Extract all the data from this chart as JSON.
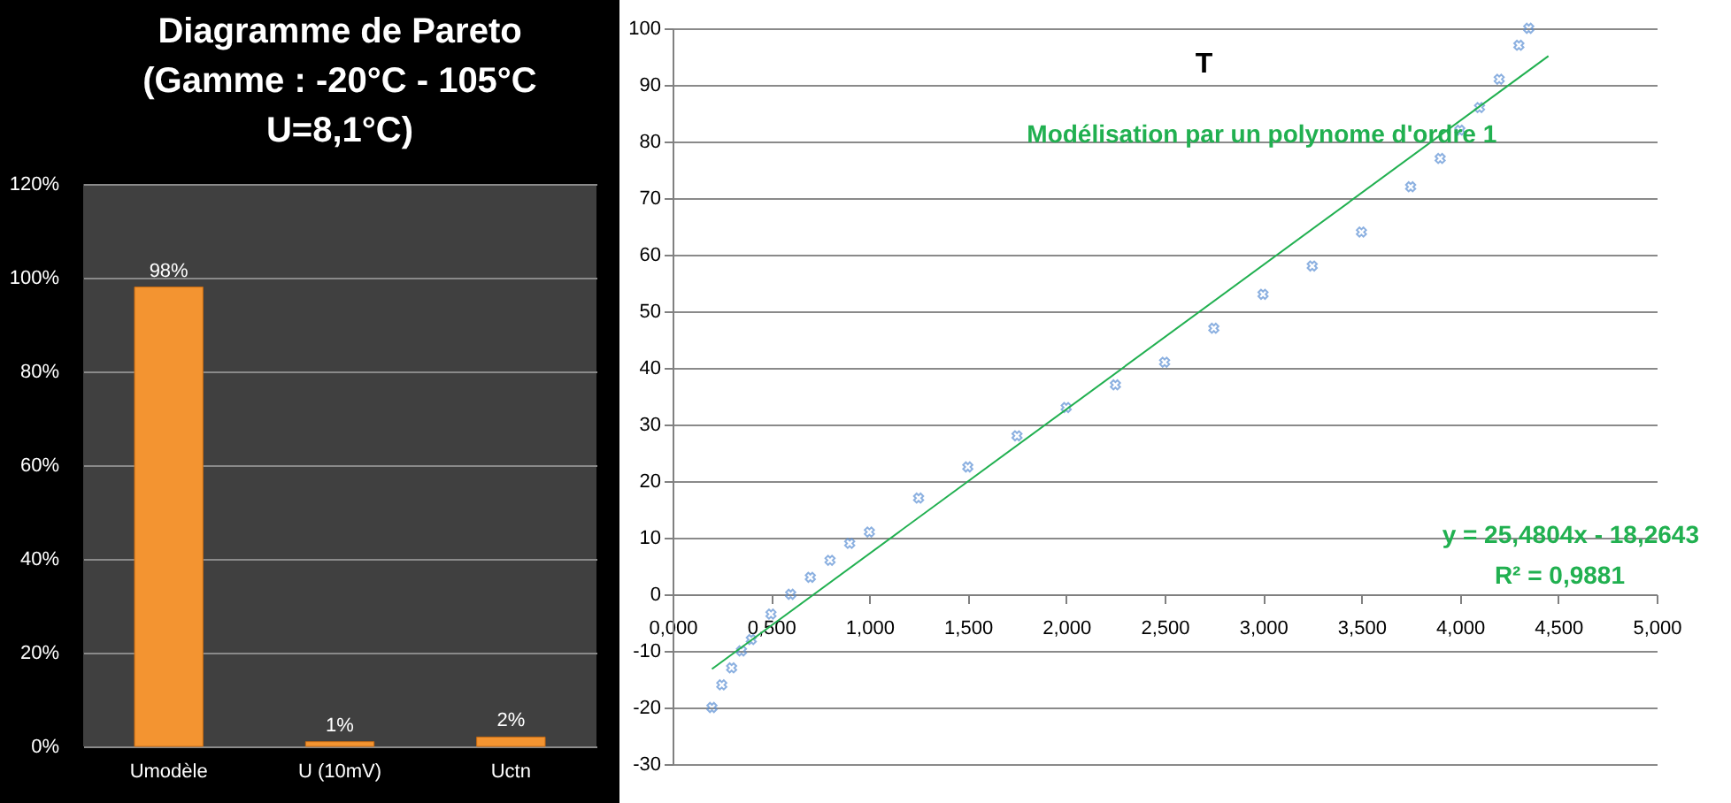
{
  "chart_data": [
    {
      "type": "bar",
      "title": "Diagramme de Pareto\n(Gamme : -20°C - 105°C\nU=8,1°C)",
      "categories": [
        "Umodèle",
        "U (10mV)",
        "Uctn"
      ],
      "values": [
        98,
        1,
        2
      ],
      "value_labels": [
        "98%",
        "1%",
        "2%"
      ],
      "color": "#f39431",
      "ylim": [
        0,
        120
      ],
      "yticks": [
        {
          "value": 0,
          "label": "0%"
        },
        {
          "value": 20,
          "label": "20%"
        },
        {
          "value": 40,
          "label": "40%"
        },
        {
          "value": 60,
          "label": "60%"
        },
        {
          "value": 80,
          "label": "80%"
        },
        {
          "value": 100,
          "label": "100%"
        },
        {
          "value": 120,
          "label": "120%"
        }
      ],
      "grid": true
    },
    {
      "type": "scatter",
      "title": "T",
      "grid": "y",
      "xlim": [
        0,
        5
      ],
      "ylim": [
        -30,
        100
      ],
      "xticks": [
        {
          "value": 0,
          "label": "0,000"
        },
        {
          "value": 0.5,
          "label": "0,500"
        },
        {
          "value": 1,
          "label": "1,000"
        },
        {
          "value": 1.5,
          "label": "1,500"
        },
        {
          "value": 2,
          "label": "2,000"
        },
        {
          "value": 2.5,
          "label": "2,500"
        },
        {
          "value": 3,
          "label": "3,000"
        },
        {
          "value": 3.5,
          "label": "3,500"
        },
        {
          "value": 4,
          "label": "4,000"
        },
        {
          "value": 4.5,
          "label": "4,500"
        },
        {
          "value": 5,
          "label": "5,000"
        }
      ],
      "yticks": [
        -30,
        -20,
        -10,
        0,
        10,
        20,
        30,
        40,
        50,
        60,
        70,
        80,
        90,
        100
      ],
      "annotations": [
        "Modélisation par un polynome d'ordre 1",
        "y = 25,4804x - 18,2643",
        "R² = 0,9881"
      ],
      "series": [
        {
          "type": "scatter",
          "marker": "cross",
          "color": "#5b8fd4",
          "x": [
            0.2,
            0.25,
            0.3,
            0.35,
            0.4,
            0.5,
            0.6,
            0.7,
            0.8,
            0.9,
            1.0,
            1.25,
            1.5,
            1.75,
            2.0,
            2.25,
            2.5,
            2.75,
            3.0,
            3.25,
            3.5,
            3.75,
            3.9,
            4.0,
            4.1,
            4.2,
            4.3,
            4.35
          ],
          "values": [
            -20,
            -16,
            -13,
            -10,
            -8,
            -3.5,
            0,
            3,
            6,
            9,
            11,
            17,
            22.5,
            28,
            33,
            37,
            41,
            47,
            53,
            58,
            64,
            72,
            77,
            82,
            86,
            91,
            97,
            100
          ]
        },
        {
          "type": "line",
          "color": "#21b050",
          "x": [
            0.2,
            4.45
          ],
          "values": [
            -13.2,
            95.1
          ]
        }
      ]
    }
  ]
}
